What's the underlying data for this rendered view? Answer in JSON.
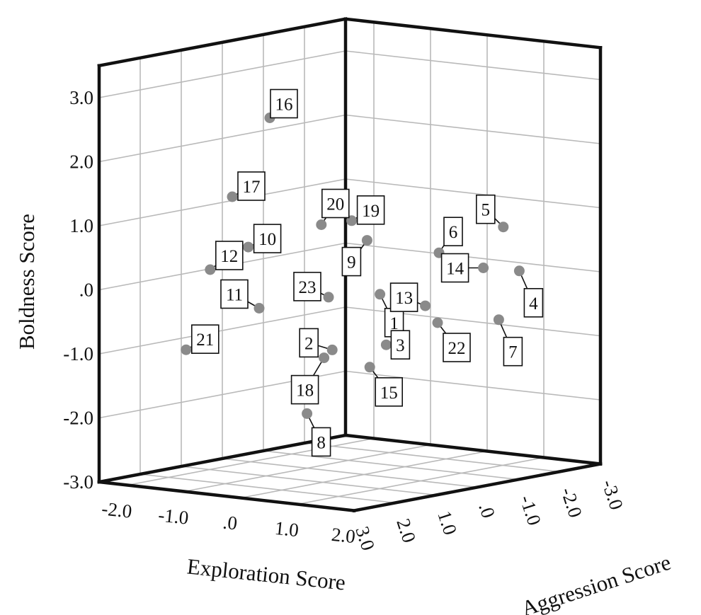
{
  "chart_data": {
    "type": "scatter",
    "projection": "3d",
    "title": "",
    "axes": {
      "x": {
        "label": "Exploration Score",
        "range": [
          -2.5,
          2.0
        ],
        "ticks": [
          "-2.0",
          "-1.0",
          ".0",
          "1.0",
          "2.0"
        ]
      },
      "y": {
        "label": "Aggression Score",
        "range": [
          -3.0,
          3.0
        ],
        "ticks": [
          "3.0",
          "2.0",
          "1.0",
          ".0",
          "-1.0",
          "-2.0",
          "-3.0"
        ]
      },
      "z": {
        "label": "Boldness Score",
        "range": [
          -3.0,
          3.5
        ],
        "ticks": [
          "3.0",
          "2.0",
          "1.0",
          ".0",
          "-1.0",
          "-2.0",
          "-3.0"
        ]
      }
    },
    "grid": true,
    "marker_color": "#8a8a8a",
    "points": [
      {
        "label": "1",
        "x": 0.5,
        "y": 0.3,
        "z": -0.1
      },
      {
        "label": "2",
        "x": 0.6,
        "y": 1.6,
        "z": -0.8
      },
      {
        "label": "3",
        "x": 0.9,
        "y": 0.7,
        "z": -0.8
      },
      {
        "label": "4",
        "x": 1.8,
        "y": -1.3,
        "z": 0.2
      },
      {
        "label": "5",
        "x": 1.3,
        "y": -1.6,
        "z": 0.8
      },
      {
        "label": "6",
        "x": 0.6,
        "y": -1.0,
        "z": 0.4
      },
      {
        "label": "7",
        "x": 1.8,
        "y": -0.8,
        "z": -0.5
      },
      {
        "label": "8",
        "x": 0.3,
        "y": 1.8,
        "z": -1.8
      },
      {
        "label": "9",
        "x": 0.2,
        "y": 0.2,
        "z": 0.7
      },
      {
        "label": "10",
        "x": -1.1,
        "y": 1.3,
        "z": 0.6
      },
      {
        "label": "11",
        "x": -0.4,
        "y": 2.0,
        "z": -0.2
      },
      {
        "label": "12",
        "x": -1.7,
        "y": 1.4,
        "z": 0.2
      },
      {
        "label": "13",
        "x": 1.3,
        "y": 0.3,
        "z": -0.2
      },
      {
        "label": "14",
        "x": 1.6,
        "y": -0.7,
        "z": 0.3
      },
      {
        "label": "15",
        "x": 0.9,
        "y": 1.1,
        "z": -1.1
      },
      {
        "label": "16",
        "x": -1.3,
        "y": 0.5,
        "z": 2.5
      },
      {
        "label": "17",
        "x": -1.6,
        "y": 1.0,
        "z": 1.3
      },
      {
        "label": "18",
        "x": 0.6,
        "y": 1.8,
        "z": -0.9
      },
      {
        "label": "19",
        "x": 0.0,
        "y": 0.3,
        "z": 1.0
      },
      {
        "label": "20",
        "x": -0.1,
        "y": 0.9,
        "z": 1.0
      },
      {
        "label": "21",
        "x": -1.4,
        "y": 2.4,
        "z": -0.9
      },
      {
        "label": "22",
        "x": 1.3,
        "y": 0.0,
        "z": -0.5
      },
      {
        "label": "23",
        "x": 0.1,
        "y": 1.0,
        "z": -0.1
      }
    ]
  }
}
